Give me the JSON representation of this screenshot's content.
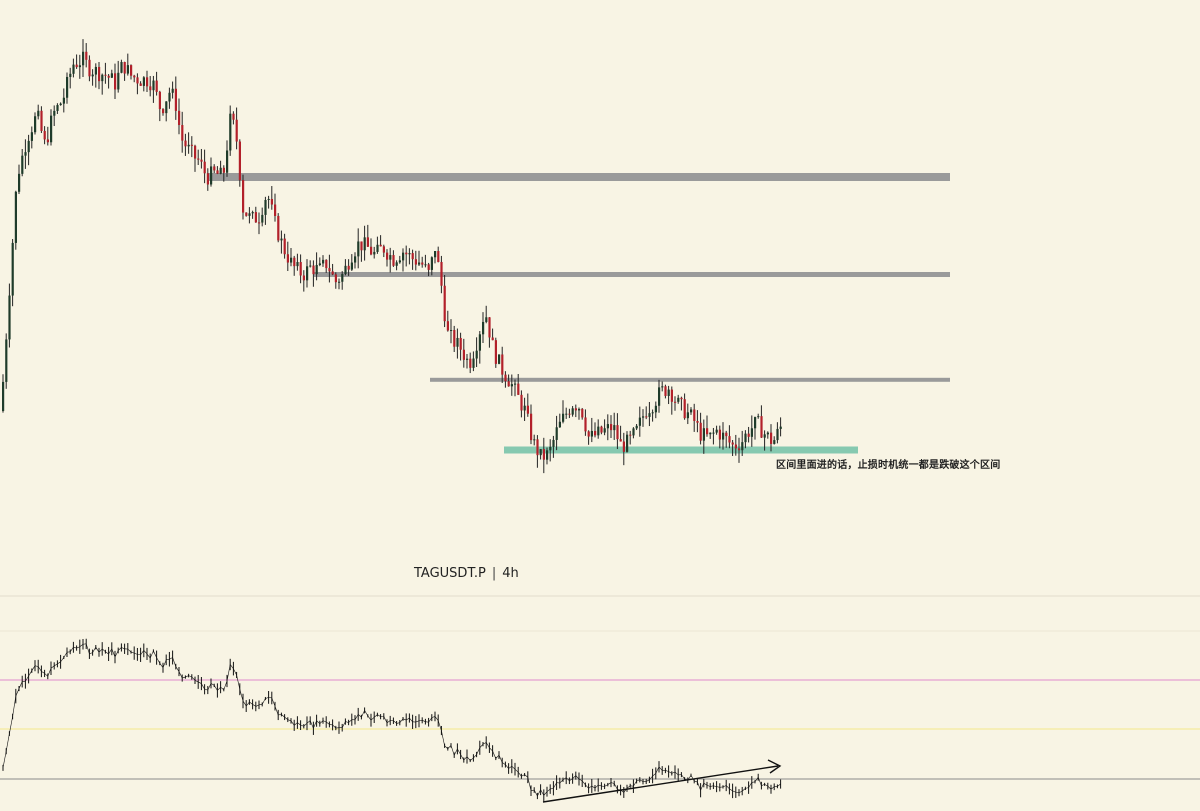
{
  "symbol": "TAGUSDT.P",
  "separator": "|",
  "timeframe": "4h",
  "annotation": "区间里面进的话，止损时机统一都是跌破这个区间",
  "colors": {
    "background": "#f8f4e4",
    "bull_candle": "#1f3b2a",
    "bear_candle": "#b2202a",
    "wick": "#222222",
    "level_line": "#9a9a9a",
    "support_zone": "#86c9b0",
    "osc_line": "#111111",
    "osc_ref_pink": "#e08acb",
    "osc_ref_yellow": "#f4e88a",
    "osc_ref_gray": "#8a8a8a",
    "pane_divider": "#e2dccb"
  },
  "chart_data": {
    "type": "candlestick",
    "symbol": "TAGUSDT.P",
    "timeframe": "4h",
    "price_path": [
      [
        0,
        0.1
      ],
      [
        8,
        0.4
      ],
      [
        16,
        0.7
      ],
      [
        26,
        0.8
      ],
      [
        36,
        0.86
      ],
      [
        44,
        0.78
      ],
      [
        52,
        0.86
      ],
      [
        62,
        0.9
      ],
      [
        72,
        0.99
      ],
      [
        82,
        1.0
      ],
      [
        88,
        0.98
      ],
      [
        96,
        0.97
      ],
      [
        106,
        0.96
      ],
      [
        114,
        0.94
      ],
      [
        122,
        0.99
      ],
      [
        130,
        0.96
      ],
      [
        138,
        0.95
      ],
      [
        146,
        0.95
      ],
      [
        152,
        0.94
      ],
      [
        160,
        0.87
      ],
      [
        168,
        0.92
      ],
      [
        174,
        0.9
      ],
      [
        180,
        0.8
      ],
      [
        190,
        0.76
      ],
      [
        198,
        0.74
      ],
      [
        206,
        0.7
      ],
      [
        214,
        0.71
      ],
      [
        222,
        0.7
      ],
      [
        230,
        0.86
      ],
      [
        236,
        0.79
      ],
      [
        242,
        0.62
      ],
      [
        250,
        0.59
      ],
      [
        258,
        0.6
      ],
      [
        266,
        0.66
      ],
      [
        274,
        0.58
      ],
      [
        282,
        0.52
      ],
      [
        292,
        0.47
      ],
      [
        302,
        0.45
      ],
      [
        310,
        0.47
      ],
      [
        318,
        0.46
      ],
      [
        326,
        0.48
      ],
      [
        334,
        0.43
      ],
      [
        342,
        0.45
      ],
      [
        350,
        0.5
      ],
      [
        358,
        0.53
      ],
      [
        366,
        0.52
      ],
      [
        374,
        0.5
      ],
      [
        382,
        0.52
      ],
      [
        392,
        0.49
      ],
      [
        402,
        0.51
      ],
      [
        412,
        0.49
      ],
      [
        420,
        0.48
      ],
      [
        428,
        0.45
      ],
      [
        434,
        0.52
      ],
      [
        440,
        0.43
      ],
      [
        446,
        0.3
      ],
      [
        452,
        0.28
      ],
      [
        460,
        0.26
      ],
      [
        468,
        0.22
      ],
      [
        476,
        0.28
      ],
      [
        484,
        0.36
      ],
      [
        492,
        0.26
      ],
      [
        500,
        0.21
      ],
      [
        508,
        0.18
      ],
      [
        516,
        0.14
      ],
      [
        524,
        0.1
      ],
      [
        532,
        0.02
      ],
      [
        540,
        -0.02
      ],
      [
        548,
        -0.01
      ],
      [
        556,
        0.05
      ],
      [
        564,
        0.09
      ],
      [
        572,
        0.12
      ],
      [
        580,
        0.11
      ],
      [
        588,
        0.03
      ],
      [
        596,
        0.04
      ],
      [
        604,
        0.05
      ],
      [
        612,
        0.06
      ],
      [
        620,
        0.01
      ],
      [
        628,
        0.02
      ],
      [
        636,
        0.05
      ],
      [
        644,
        0.1
      ],
      [
        652,
        0.12
      ],
      [
        660,
        0.15
      ],
      [
        668,
        0.16
      ],
      [
        676,
        0.12
      ],
      [
        684,
        0.1
      ],
      [
        692,
        0.08
      ],
      [
        700,
        0.04
      ],
      [
        708,
        0.03
      ],
      [
        716,
        0.05
      ],
      [
        724,
        0.03
      ],
      [
        732,
        0.01
      ],
      [
        740,
        0.02
      ],
      [
        748,
        0.05
      ],
      [
        756,
        0.07
      ],
      [
        764,
        0.04
      ],
      [
        772,
        0.02
      ],
      [
        780,
        0.06
      ]
    ],
    "levels": [
      {
        "type": "resistance",
        "level": 0.7,
        "color": "#9a9a9a"
      },
      {
        "type": "resistance",
        "level": 0.45,
        "color": "#9a9a9a"
      },
      {
        "type": "resistance",
        "level": 0.18,
        "color": "#9a9a9a"
      },
      {
        "type": "support_zone",
        "level": 0.0,
        "color": "#86c9b0"
      }
    ],
    "oscillator": {
      "reference_lines": [
        "pink",
        "yellow",
        "gray"
      ],
      "trend_arrow": "rising"
    }
  }
}
